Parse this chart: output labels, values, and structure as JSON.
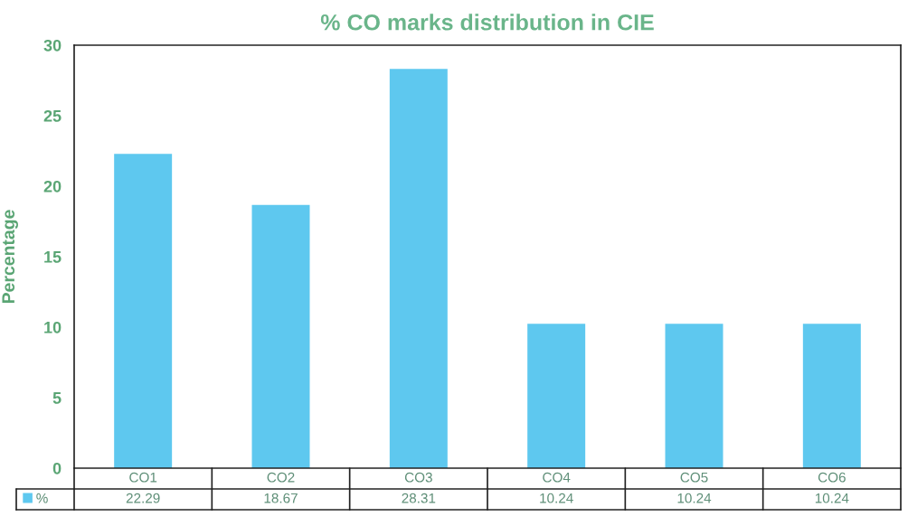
{
  "chart_data": {
    "type": "bar",
    "title": "% CO marks distribution in CIE",
    "ylabel": "Percentage",
    "categories": [
      "CO1",
      "CO2",
      "CO3",
      "CO4",
      "CO5",
      "CO6"
    ],
    "series": [
      {
        "name": "%",
        "color": "#5ec8ef",
        "values": [
          22.29,
          18.67,
          28.31,
          10.24,
          10.24,
          10.24
        ]
      }
    ],
    "ylim": [
      0,
      30
    ],
    "yticks": [
      0,
      5,
      10,
      15,
      20,
      25,
      30
    ],
    "data_labels": true,
    "legend": "bottom left"
  }
}
